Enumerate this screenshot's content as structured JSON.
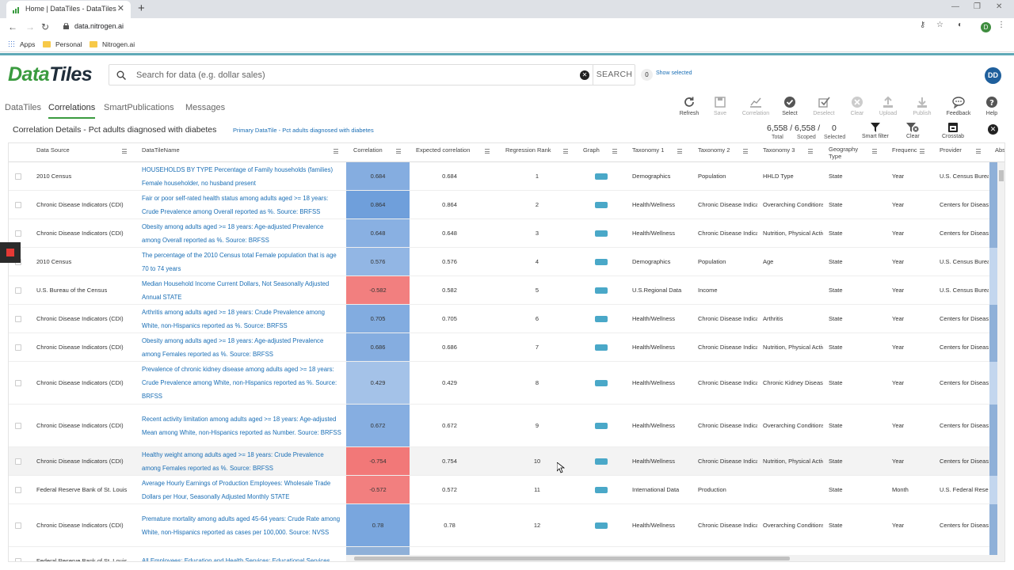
{
  "browser": {
    "tab_title": "Home | DataTiles - DataTiles",
    "url": "data.nitrogen.ai",
    "profile_initial": "D",
    "bookmarks": [
      "Apps",
      "Personal",
      "Nitrogen.ai"
    ]
  },
  "app": {
    "logo_part1": "Data",
    "logo_part2": "Tiles",
    "search_placeholder": "Search for data (e.g. dollar sales)",
    "search_button": "SEARCH",
    "selected_count": "0",
    "show_selected": "Show selected",
    "user_initials": "DD"
  },
  "nav_tabs": [
    "DataTiles",
    "Correlations",
    "SmartPublications",
    "Messages"
  ],
  "toolbar": [
    {
      "label": "Refresh",
      "icon": "refresh-icon",
      "enabled": true
    },
    {
      "label": "Save",
      "icon": "save-icon",
      "enabled": false
    },
    {
      "label": "Correlation",
      "icon": "chart-icon",
      "enabled": false
    },
    {
      "label": "Select",
      "icon": "check-circle-icon",
      "enabled": true
    },
    {
      "label": "Deselect",
      "icon": "deselect-icon",
      "enabled": false
    },
    {
      "label": "Clear",
      "icon": "clear-icon",
      "enabled": false
    },
    {
      "label": "Upload",
      "icon": "upload-icon",
      "enabled": false
    },
    {
      "label": "Publish",
      "icon": "publish-icon",
      "enabled": false
    },
    {
      "label": "Feedback",
      "icon": "feedback-icon",
      "enabled": true
    },
    {
      "label": "Help",
      "icon": "help-icon",
      "enabled": true
    }
  ],
  "details": {
    "title": "Correlation Details - Pct adults diagnosed with diabetes",
    "primary": "Primary DataTile - Pct adults diagnosed with diabetes",
    "total": "6,558",
    "scoped": "6,558",
    "selected": "0",
    "total_label": "Total",
    "scoped_label": "Scoped",
    "selected_label": "Selected",
    "smart_filter": "Smart filter",
    "clear": "Clear",
    "crosstab": "Crosstab"
  },
  "columns": [
    "Data Source",
    "DataTileName",
    "Correlation",
    "Expected correlation",
    "Regression Rank",
    "Graph",
    "Taxonomy 1",
    "Taxonomy 2",
    "Taxonomy 3",
    "Geography Type",
    "Frequenc",
    "Provider",
    "Abs"
  ],
  "colors": {
    "positive": "#8fb0d8",
    "negative": "#f28f8f",
    "accent": "#3a9b3f",
    "link": "#1a6eb5"
  },
  "rows": [
    {
      "source": "2010 Census",
      "name": "HOUSEHOLDS BY TYPE Percentage of Family households (families) Female householder, no husband present",
      "corr": "0.684",
      "expected": "0.684",
      "rank": "1",
      "t1": "Demographics",
      "t2": "Population",
      "t3": "HHLD Type",
      "geo": "State",
      "freq": "Year",
      "provider": "U.S. Census Bureau"
    },
    {
      "source": "Chronic Disease Indicators (CDI)",
      "name": "Fair or poor self-rated health status among adults aged >= 18 years: Crude Prevalence among Overall reported as %. Source: BRFSS",
      "corr": "0.864",
      "expected": "0.864",
      "rank": "2",
      "t1": "Health/Wellness",
      "t2": "Chronic Disease Indicators",
      "t3": "Overarching Conditions",
      "geo": "State",
      "freq": "Year",
      "provider": "Centers for Disease"
    },
    {
      "source": "Chronic Disease Indicators (CDI)",
      "name": "Obesity among adults aged >= 18 years: Age-adjusted Prevalence among Overall reported as %. Source: BRFSS",
      "corr": "0.648",
      "expected": "0.648",
      "rank": "3",
      "t1": "Health/Wellness",
      "t2": "Chronic Disease Indicators",
      "t3": "Nutrition, Physical Activity",
      "geo": "State",
      "freq": "Year",
      "provider": "Centers for Disease"
    },
    {
      "source": "2010 Census",
      "name": "The percentage of the 2010 Census total Female population that is age 70 to 74 years",
      "corr": "0.576",
      "expected": "0.576",
      "rank": "4",
      "t1": "Demographics",
      "t2": "Population",
      "t3": "Age",
      "geo": "State",
      "freq": "Year",
      "provider": "U.S. Census Bureau"
    },
    {
      "source": "U.S. Bureau of the Census",
      "name": "Median Household Income Current Dollars, Not Seasonally Adjusted Annual STATE",
      "corr": "-0.582",
      "expected": "0.582",
      "rank": "5",
      "t1": "U.S.Regional Data",
      "t2": "Income",
      "t3": "",
      "geo": "State",
      "freq": "Year",
      "provider": "U.S. Census Bureau"
    },
    {
      "source": "Chronic Disease Indicators (CDI)",
      "name": "Arthritis among adults aged >= 18 years: Crude Prevalence among White, non-Hispanics reported as %. Source: BRFSS",
      "corr": "0.705",
      "expected": "0.705",
      "rank": "6",
      "t1": "Health/Wellness",
      "t2": "Chronic Disease Indicators",
      "t3": "Arthritis",
      "geo": "State",
      "freq": "Year",
      "provider": "Centers for Disease"
    },
    {
      "source": "Chronic Disease Indicators (CDI)",
      "name": "Obesity among adults aged >= 18 years: Age-adjusted Prevalence among Females reported as %. Source: BRFSS",
      "corr": "0.686",
      "expected": "0.686",
      "rank": "7",
      "t1": "Health/Wellness",
      "t2": "Chronic Disease Indicators",
      "t3": "Nutrition, Physical Activity",
      "geo": "State",
      "freq": "Year",
      "provider": "Centers for Disease"
    },
    {
      "source": "Chronic Disease Indicators (CDI)",
      "name": "Prevalence of chronic kidney disease among adults aged >= 18 years: Crude Prevalence among White, non-Hispanics reported as %. Source: BRFSS",
      "corr": "0.429",
      "expected": "0.429",
      "rank": "8",
      "t1": "Health/Wellness",
      "t2": "Chronic Disease Indicators",
      "t3": "Chronic Kidney Disease",
      "geo": "State",
      "freq": "Year",
      "provider": "Centers for Disease"
    },
    {
      "source": "Chronic Disease Indicators (CDI)",
      "name": "Recent activity limitation among adults aged >= 18 years: Age-adjusted Mean among White, non-Hispanics reported as Number. Source: BRFSS",
      "corr": "0.672",
      "expected": "0.672",
      "rank": "9",
      "t1": "Health/Wellness",
      "t2": "Chronic Disease Indicators",
      "t3": "Overarching Conditions",
      "geo": "State",
      "freq": "Year",
      "provider": "Centers for Disease"
    },
    {
      "source": "Chronic Disease Indicators (CDI)",
      "name": "Healthy weight among adults aged >= 18 years: Crude Prevalence among Females reported as %. Source: BRFSS",
      "corr": "-0.754",
      "expected": "0.754",
      "rank": "10",
      "t1": "Health/Wellness",
      "t2": "Chronic Disease Indicators",
      "t3": "Nutrition, Physical Activity",
      "geo": "State",
      "freq": "Year",
      "provider": "Centers for Disease"
    },
    {
      "source": "Federal Reserve Bank of St. Louis",
      "name": "Average Hourly Earnings of Production Employees: Wholesale Trade Dollars per Hour, Seasonally Adjusted Monthly STATE",
      "corr": "-0.572",
      "expected": "0.572",
      "rank": "11",
      "t1": "International Data",
      "t2": "Production",
      "t3": "",
      "geo": "State",
      "freq": "Month",
      "provider": "U.S. Federal Reserve"
    },
    {
      "source": "Chronic Disease Indicators (CDI)",
      "name": "Premature mortality among adults aged 45-64 years: Crude Rate among White, non-Hispanics reported as cases per 100,000. Source: NVSS",
      "corr": "0.78",
      "expected": "0.78",
      "rank": "12",
      "t1": "Health/Wellness",
      "t2": "Chronic Disease Indicators",
      "t3": "Overarching Conditions",
      "geo": "State",
      "freq": "Year",
      "provider": "Centers for Disease"
    },
    {
      "source": "Federal Reserve Bank of St. Louis",
      "name": "All Employees: Education and Health Services: Educational Services",
      "corr": "",
      "expected": "",
      "rank": "",
      "t1": "",
      "t2": "",
      "t3": "",
      "geo": "",
      "freq": "",
      "provider": ""
    }
  ]
}
